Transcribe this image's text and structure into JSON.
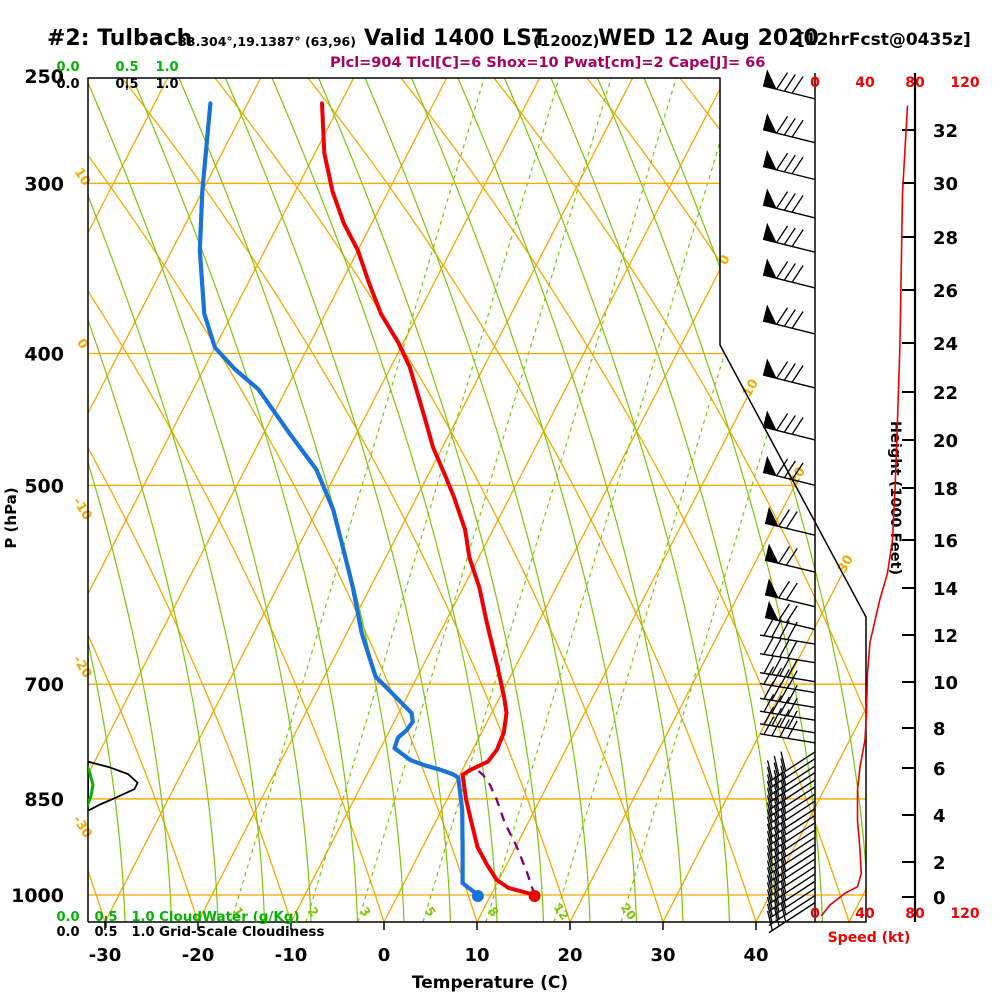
{
  "header": {
    "station": "#2: Tulbach",
    "coords": "-33.304°,19.1387° (63,96)",
    "valid": "Valid 1400 LST",
    "valid_z": "(1200Z)",
    "valid_date": "WED 12 Aug 2020",
    "fcst_tag": "[12hrFcst@0435z]",
    "stats": "Plcl=904 Tlcl[C]=6 Shox=10 Pwat[cm]=2 Cape[J]= 66"
  },
  "left_axis": {
    "label": "P (hPa)",
    "ticks": [
      250,
      300,
      400,
      500,
      700,
      850,
      1000
    ]
  },
  "bottom_axis": {
    "label": "Temperature (C)",
    "ticks": [
      -30,
      -20,
      -10,
      0,
      10,
      20,
      30,
      40
    ]
  },
  "right_axis": {
    "label": "Height (1000 Feet)",
    "ticks": [
      0,
      2,
      4,
      6,
      8,
      10,
      12,
      14,
      16,
      18,
      20,
      22,
      24,
      26,
      28,
      30,
      32
    ]
  },
  "speed_axis": {
    "label": "Speed (kt)",
    "ticks": [
      0,
      40,
      80,
      120
    ]
  },
  "cloud_scales": {
    "water_label": "CloudWater (g/Kg)",
    "water_ticks": [
      "0.0",
      "0.5",
      "1.0"
    ],
    "cloudiness_label": "Grid-Scale Cloudiness",
    "cloudiness_ticks": [
      "0.0",
      "0.5",
      "1.0"
    ]
  },
  "grid_labels": {
    "mixing_ratio": [
      "1",
      "2",
      "3",
      "5",
      "8",
      "12",
      "20"
    ],
    "isotherms_right": [
      "0",
      "10",
      "20",
      "30"
    ],
    "dry_adiabats_left": [
      "10",
      "0",
      "-10",
      "-20",
      "-30"
    ]
  },
  "colors": {
    "isotherm_orange": "#f5a800",
    "grid_green": "#7cc608",
    "cloud_green": "#00b400",
    "temp_red": "#ee0000",
    "dew_blue": "#1a73d9",
    "parcel_purple": "#7b007b",
    "speed_red": "#ee0000",
    "stats_magenta": "#a8005c",
    "axis_black": "#000000"
  },
  "chart_data": {
    "type": "skew-t-log-p sounding",
    "pressure_range_hpa": [
      250,
      1000
    ],
    "temperature_range_c": [
      -30,
      40
    ],
    "temperature_profile": [
      [
        262,
        -52
      ],
      [
        285,
        -49
      ],
      [
        304,
        -46
      ],
      [
        321,
        -43
      ],
      [
        336,
        -40
      ],
      [
        355,
        -37
      ],
      [
        374,
        -34
      ],
      [
        393,
        -30.5
      ],
      [
        409,
        -28
      ],
      [
        442,
        -24
      ],
      [
        469,
        -21
      ],
      [
        493,
        -18
      ],
      [
        510,
        -16
      ],
      [
        539,
        -13
      ],
      [
        565,
        -11
      ],
      [
        594,
        -8.3
      ],
      [
        631,
        -5.5
      ],
      [
        680,
        -1.9
      ],
      [
        716,
        0.5
      ],
      [
        735,
        1.6
      ],
      [
        760,
        2.4
      ],
      [
        782,
        2.6
      ],
      [
        798,
        2.3
      ],
      [
        809,
        0.9
      ],
      [
        816,
        0.3
      ],
      [
        850,
        2.0
      ],
      [
        881,
        3.7
      ],
      [
        922,
        5.9
      ],
      [
        950,
        7.9
      ],
      [
        975,
        9.8
      ],
      [
        988,
        11.5
      ],
      [
        1000,
        14.7
      ]
    ],
    "dewpoint_profile": [
      [
        262,
        -64
      ],
      [
        304,
        -60
      ],
      [
        336,
        -57
      ],
      [
        374,
        -53
      ],
      [
        396,
        -50
      ],
      [
        411,
        -46.6
      ],
      [
        425,
        -43
      ],
      [
        458,
        -37.2
      ],
      [
        487,
        -32.3
      ],
      [
        521,
        -28.3
      ],
      [
        555,
        -25.2
      ],
      [
        594,
        -21.9
      ],
      [
        642,
        -18.4
      ],
      [
        691,
        -14.5
      ],
      [
        735,
        -8.6
      ],
      [
        746,
        -8
      ],
      [
        757,
        -8.2
      ],
      [
        766,
        -8.7
      ],
      [
        780,
        -8.5
      ],
      [
        796,
        -6.1
      ],
      [
        803,
        -4.3
      ],
      [
        809,
        -2.4
      ],
      [
        815,
        -0.8
      ],
      [
        820,
        0
      ],
      [
        866,
        2.2
      ],
      [
        922,
        4.3
      ],
      [
        980,
        6.3
      ],
      [
        1000,
        8.6
      ]
    ],
    "parcel_path": [
      [
        1000,
        14.7
      ],
      [
        962,
        12.6
      ],
      [
        920,
        10.0
      ],
      [
        885,
        7.5
      ],
      [
        852,
        5.4
      ],
      [
        830,
        3.8
      ],
      [
        816,
        2.5
      ],
      [
        807,
        1.3
      ]
    ],
    "surface": {
      "pressure": 1000,
      "temperature": 14.7,
      "dewpoint": 8.6
    },
    "wind_speed_profile_kt": [
      [
        263,
        74
      ],
      [
        305,
        70
      ],
      [
        393,
        68
      ],
      [
        448,
        66
      ],
      [
        504,
        64
      ],
      [
        548,
        62
      ],
      [
        580,
        58
      ],
      [
        606,
        52
      ],
      [
        652,
        44
      ],
      [
        687,
        42
      ],
      [
        740,
        41
      ],
      [
        769,
        40
      ],
      [
        805,
        36
      ],
      [
        837,
        34
      ],
      [
        881,
        34
      ],
      [
        927,
        36
      ],
      [
        964,
        37
      ],
      [
        986,
        34
      ],
      [
        997,
        24
      ],
      [
        1017,
        12
      ],
      [
        1036,
        5
      ]
    ],
    "wind_barb_levels_hpa": {
      "pennant_3": [
        260,
        280,
        298,
        318,
        337,
        358,
        387,
        424,
        463,
        500
      ],
      "pennant_2": [
        544,
        579,
        614,
        638
      ],
      "feathers_4": [
        654,
        675,
        697,
        710,
        728,
        744,
        760,
        773
      ],
      "feathers_3_low": [
        785,
        794,
        804,
        813,
        823,
        833,
        843,
        853,
        864,
        874,
        885,
        896,
        907,
        918,
        930,
        941,
        953,
        965,
        977,
        989,
        1001,
        1013
      ]
    },
    "cloudiness_profile": [
      [
        798,
        0.0
      ],
      [
        806,
        0.28
      ],
      [
        815,
        0.5
      ],
      [
        827,
        0.62
      ],
      [
        836,
        0.58
      ],
      [
        848,
        0.35
      ],
      [
        858,
        0.15
      ],
      [
        866,
        0.02
      ]
    ],
    "cloudwater_profile": [
      [
        255,
        0
      ],
      [
        800,
        0.0
      ],
      [
        812,
        0.05
      ],
      [
        830,
        0.1
      ],
      [
        846,
        0.07
      ],
      [
        862,
        0.01
      ],
      [
        1000,
        0
      ]
    ]
  }
}
